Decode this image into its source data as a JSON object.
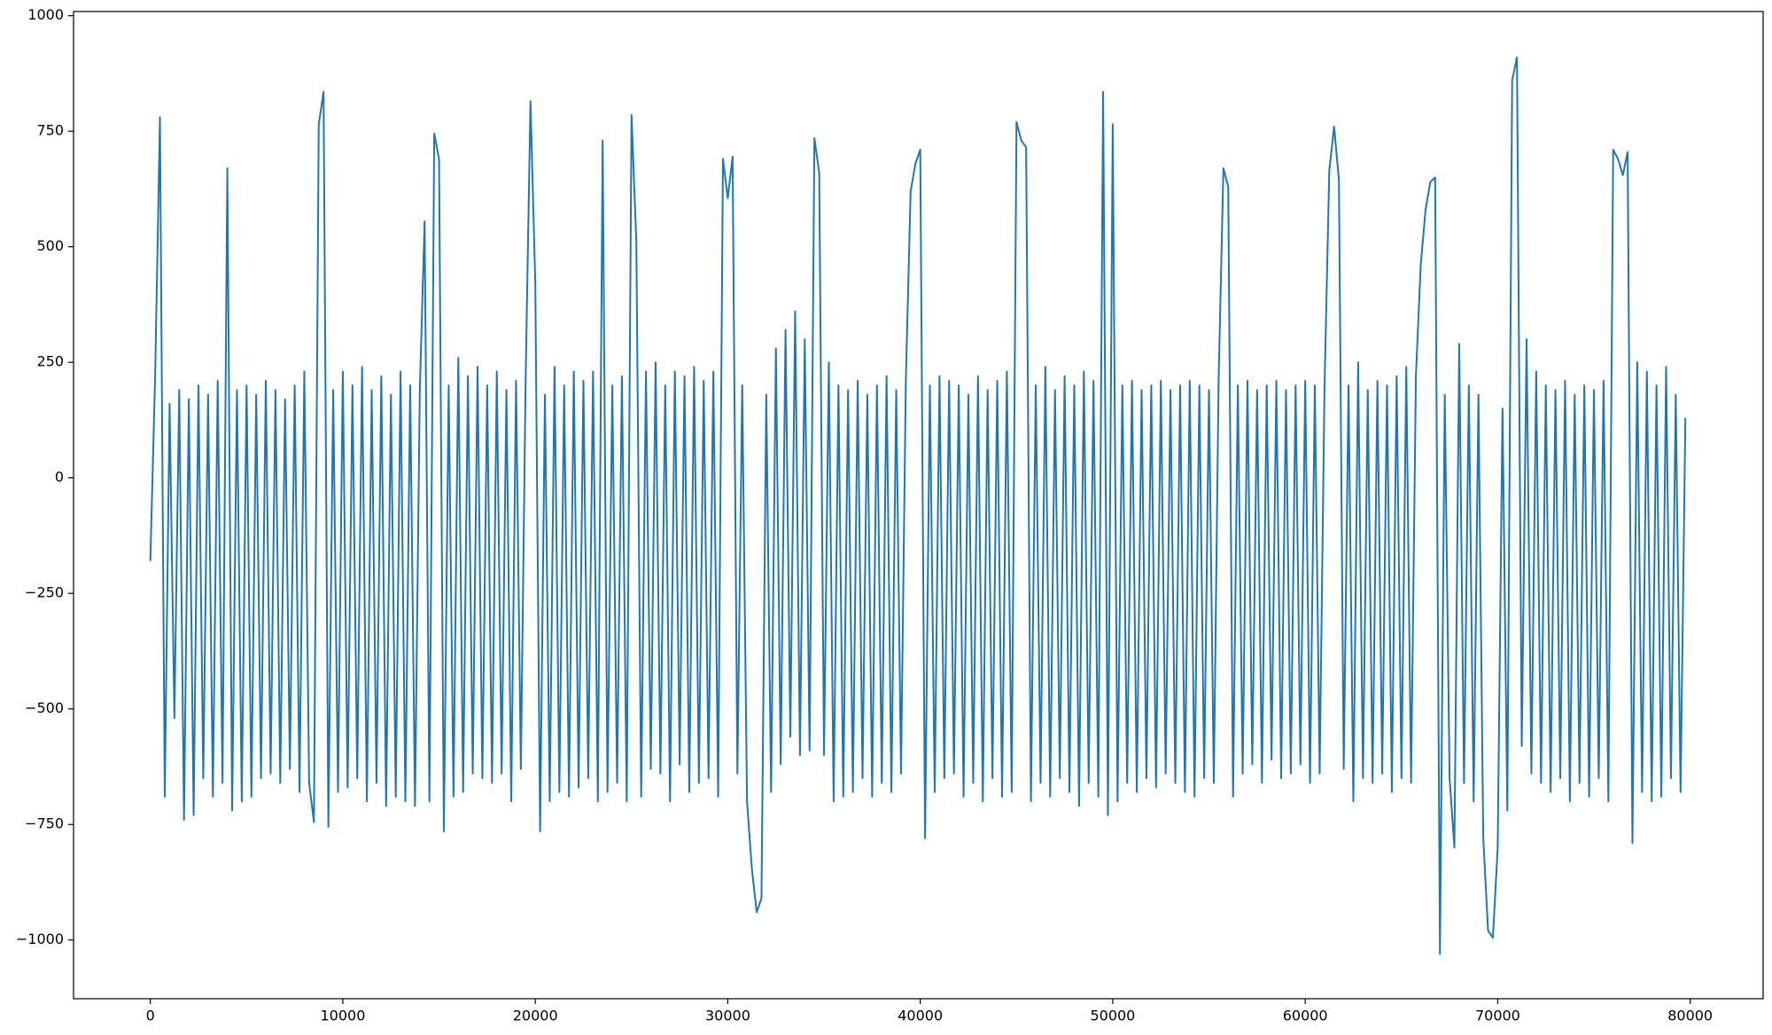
{
  "chart_data": {
    "type": "line",
    "color": "#1f77b4",
    "x": [
      0,
      250,
      500,
      750,
      1000,
      1250,
      1500,
      1750,
      2000,
      2250,
      2500,
      2750,
      3000,
      3250,
      3500,
      3750,
      4000,
      4250,
      4500,
      4750,
      5000,
      5250,
      5500,
      5750,
      6000,
      6250,
      6500,
      6750,
      7000,
      7250,
      7500,
      7750,
      8000,
      8250,
      8500,
      8750,
      9000,
      9250,
      9500,
      9750,
      10000,
      10250,
      10500,
      10750,
      11000,
      11250,
      11500,
      11750,
      12000,
      12250,
      12500,
      12750,
      13000,
      13250,
      13500,
      13750,
      14000,
      14250,
      14500,
      14750,
      15000,
      15250,
      15500,
      15750,
      16000,
      16250,
      16500,
      16750,
      17000,
      17250,
      17500,
      17750,
      18000,
      18250,
      18500,
      18750,
      19000,
      19250,
      19500,
      19750,
      20000,
      20250,
      20500,
      20750,
      21000,
      21250,
      21500,
      21750,
      22000,
      22250,
      22500,
      22750,
      23000,
      23250,
      23500,
      23750,
      24000,
      24250,
      24500,
      24750,
      25000,
      25250,
      25500,
      25750,
      26000,
      26250,
      26500,
      26750,
      27000,
      27250,
      27500,
      27750,
      28000,
      28250,
      28500,
      28750,
      29000,
      29250,
      29500,
      29750,
      30000,
      30250,
      30500,
      30750,
      31000,
      31250,
      31500,
      31750,
      32000,
      32250,
      32500,
      32750,
      33000,
      33250,
      33500,
      33750,
      34000,
      34250,
      34500,
      34750,
      35000,
      35250,
      35500,
      35750,
      36000,
      36250,
      36500,
      36750,
      37000,
      37250,
      37500,
      37750,
      38000,
      38250,
      38500,
      38750,
      39000,
      39250,
      39500,
      39750,
      40000,
      40250,
      40500,
      40750,
      41000,
      41250,
      41500,
      41750,
      42000,
      42250,
      42500,
      42750,
      43000,
      43250,
      43500,
      43750,
      44000,
      44250,
      44500,
      44750,
      45000,
      45250,
      45500,
      45750,
      46000,
      46250,
      46500,
      46750,
      47000,
      47250,
      47500,
      47750,
      48000,
      48250,
      48500,
      48750,
      49000,
      49250,
      49500,
      49750,
      50000,
      50250,
      50500,
      50750,
      51000,
      51250,
      51500,
      51750,
      52000,
      52250,
      52500,
      52750,
      53000,
      53250,
      53500,
      53750,
      54000,
      54250,
      54500,
      54750,
      55000,
      55250,
      55500,
      55750,
      56000,
      56250,
      56500,
      56750,
      57000,
      57250,
      57500,
      57750,
      58000,
      58250,
      58500,
      58750,
      59000,
      59250,
      59500,
      59750,
      60000,
      60250,
      60500,
      60750,
      61000,
      61250,
      61500,
      61750,
      62000,
      62250,
      62500,
      62750,
      63000,
      63250,
      63500,
      63750,
      64000,
      64250,
      64500,
      64750,
      65000,
      65250,
      65500,
      65750,
      66000,
      66250,
      66500,
      66750,
      67000,
      67250,
      67500,
      67750,
      68000,
      68250,
      68500,
      68750,
      69000,
      69250,
      69500,
      69750,
      70000,
      70250,
      70500,
      70750,
      71000,
      71250,
      71500,
      71750,
      72000,
      72250,
      72500,
      72750,
      73000,
      73250,
      73500,
      73750,
      74000,
      74250,
      74500,
      74750,
      75000,
      75250,
      75500,
      75750,
      76000,
      76250,
      76500,
      76750,
      77000,
      77250,
      77500,
      77750,
      78000,
      78250,
      78500,
      78750,
      79000,
      79250,
      79500,
      79750
    ],
    "values": [
      -180,
      220,
      780,
      -690,
      160,
      -520,
      190,
      -740,
      170,
      -730,
      200,
      -650,
      180,
      -690,
      210,
      -660,
      670,
      -720,
      190,
      -700,
      200,
      -690,
      180,
      -650,
      210,
      -640,
      190,
      -660,
      170,
      -630,
      200,
      -680,
      230,
      -660,
      -745,
      765,
      835,
      -755,
      190,
      -680,
      230,
      -670,
      200,
      -650,
      240,
      -700,
      190,
      -660,
      220,
      -710,
      180,
      -690,
      230,
      -700,
      200,
      -710,
      190,
      555,
      -700,
      745,
      690,
      -765,
      200,
      -690,
      260,
      -680,
      220,
      -640,
      240,
      -650,
      200,
      -660,
      230,
      -640,
      190,
      -700,
      210,
      -630,
      220,
      815,
      420,
      -765,
      180,
      -700,
      240,
      -680,
      200,
      -690,
      230,
      -670,
      210,
      -650,
      230,
      -700,
      730,
      -680,
      200,
      -660,
      220,
      -700,
      785,
      510,
      -690,
      230,
      -630,
      250,
      -640,
      200,
      -700,
      230,
      -620,
      220,
      -680,
      240,
      -660,
      210,
      -650,
      230,
      -690,
      690,
      605,
      695,
      -640,
      200,
      -700,
      -845,
      -940,
      -910,
      180,
      -680,
      280,
      -620,
      320,
      -560,
      360,
      -600,
      300,
      -590,
      735,
      660,
      -600,
      250,
      -700,
      200,
      -690,
      190,
      -680,
      210,
      -650,
      180,
      -690,
      200,
      -660,
      220,
      -680,
      190,
      -640,
      210,
      620,
      680,
      710,
      -780,
      200,
      -680,
      220,
      -650,
      210,
      -640,
      200,
      -690,
      180,
      -660,
      220,
      -700,
      190,
      -650,
      210,
      -690,
      230,
      -680,
      770,
      730,
      715,
      -700,
      200,
      -660,
      240,
      -690,
      190,
      -650,
      220,
      -680,
      200,
      -710,
      230,
      -660,
      210,
      -690,
      835,
      -730,
      765,
      -700,
      200,
      -660,
      210,
      -680,
      190,
      -650,
      200,
      -670,
      210,
      -640,
      190,
      -660,
      200,
      -680,
      210,
      -690,
      200,
      -650,
      190,
      -660,
      210,
      670,
      630,
      -690,
      200,
      -640,
      210,
      -620,
      190,
      -660,
      200,
      -610,
      210,
      -650,
      190,
      -640,
      200,
      -620,
      210,
      -660,
      200,
      -640,
      190,
      665,
      760,
      645,
      -630,
      200,
      -700,
      250,
      -650,
      190,
      -660,
      210,
      -640,
      200,
      -680,
      220,
      -650,
      240,
      -660,
      220,
      460,
      580,
      640,
      650,
      -1030,
      180,
      -650,
      -800,
      290,
      -660,
      200,
      -700,
      180,
      -780,
      -980,
      -995,
      -800,
      150,
      -720,
      860,
      910,
      -580,
      300,
      -640,
      230,
      -660,
      200,
      -680,
      190,
      -650,
      210,
      -700,
      180,
      -660,
      200,
      -690,
      190,
      -650,
      210,
      -700,
      710,
      690,
      655,
      705,
      -790,
      250,
      -680,
      230,
      -700,
      200,
      -690,
      240,
      -650,
      180,
      -680,
      130
    ],
    "xlim": [
      -3990,
      83790
    ],
    "ylim": [
      -1127,
      1009
    ],
    "xticks": [
      0,
      10000,
      20000,
      30000,
      40000,
      50000,
      60000,
      70000,
      80000
    ],
    "yticks": [
      {
        "value": -1000,
        "label": "−1000"
      },
      {
        "value": -750,
        "label": "−750"
      },
      {
        "value": -500,
        "label": "−500"
      },
      {
        "value": -250,
        "label": "−250"
      },
      0,
      250,
      500,
      750,
      1000
    ]
  }
}
